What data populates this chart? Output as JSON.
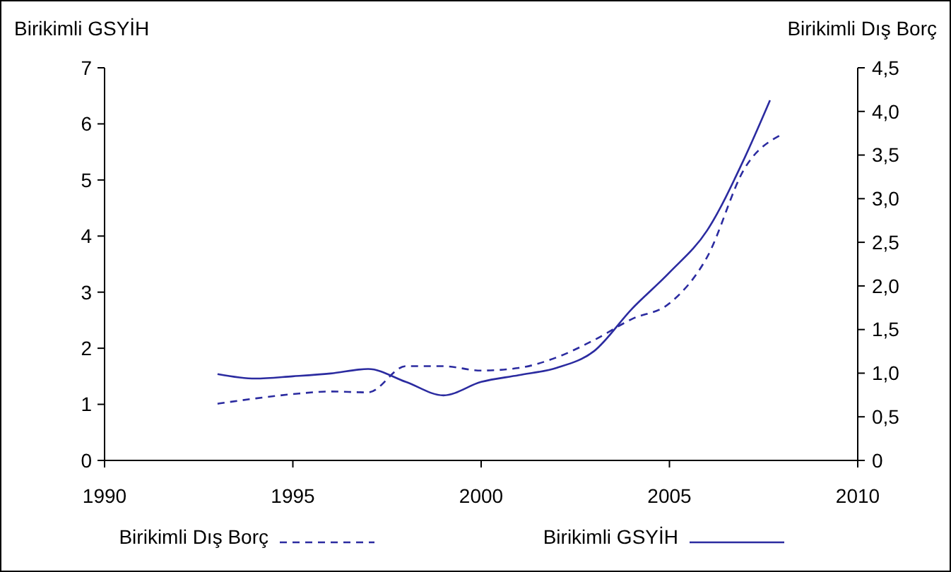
{
  "chart_data": {
    "type": "line",
    "ylabel": "Birikimli GSYİH",
    "y2label": "Birikimli Dış Borç",
    "xlim": [
      1990,
      2010
    ],
    "xticks": [
      1990,
      1995,
      2000,
      2005,
      2010
    ],
    "ylim": [
      0,
      7
    ],
    "yticks": [
      0,
      1,
      2,
      3,
      4,
      5,
      6,
      7
    ],
    "y2lim": [
      0,
      4.5
    ],
    "y2ticks": [
      0,
      {
        "value": 0.5,
        "label": "0,5"
      },
      {
        "value": 1,
        "label": "1,0"
      },
      {
        "value": 1.5,
        "label": "1,5"
      },
      {
        "value": 2,
        "label": "2,0"
      },
      {
        "value": 2.5,
        "label": "2,5"
      },
      {
        "value": 3,
        "label": "3,0"
      },
      {
        "value": 3.5,
        "label": "3,5"
      },
      {
        "value": 4,
        "label": "4,0"
      },
      {
        "value": 4.5,
        "label": "4,5"
      }
    ],
    "legend": "bottom",
    "grid": false,
    "series": [
      {
        "name": "Birikimli Dış Borç",
        "color": "#2b2ba0",
        "axis": "y2",
        "line_style": "dashed",
        "x": [
          1993,
          1994,
          1995,
          1996,
          1997,
          1998,
          1999,
          2000,
          2001,
          2002,
          2003,
          2004,
          2005,
          2006,
          2007,
          2008
        ],
        "values": [
          0.65,
          0.71,
          0.76,
          0.79,
          0.78,
          1.08,
          1.08,
          1.03,
          1.06,
          1.18,
          1.38,
          1.62,
          1.8,
          2.33,
          3.35,
          3.74
        ]
      },
      {
        "name": "Birikimli GSYİH",
        "color": "#2b2ba0",
        "axis": "y",
        "line_style": "solid",
        "x": [
          1993,
          1994,
          1995,
          1996,
          1997,
          1998,
          1999,
          2000,
          2001,
          2002,
          2003,
          2004,
          2005,
          2006,
          2007,
          2007.67
        ],
        "values": [
          1.54,
          1.46,
          1.5,
          1.55,
          1.63,
          1.4,
          1.16,
          1.4,
          1.52,
          1.65,
          1.95,
          2.7,
          3.35,
          4.1,
          5.4,
          6.42
        ]
      }
    ]
  }
}
